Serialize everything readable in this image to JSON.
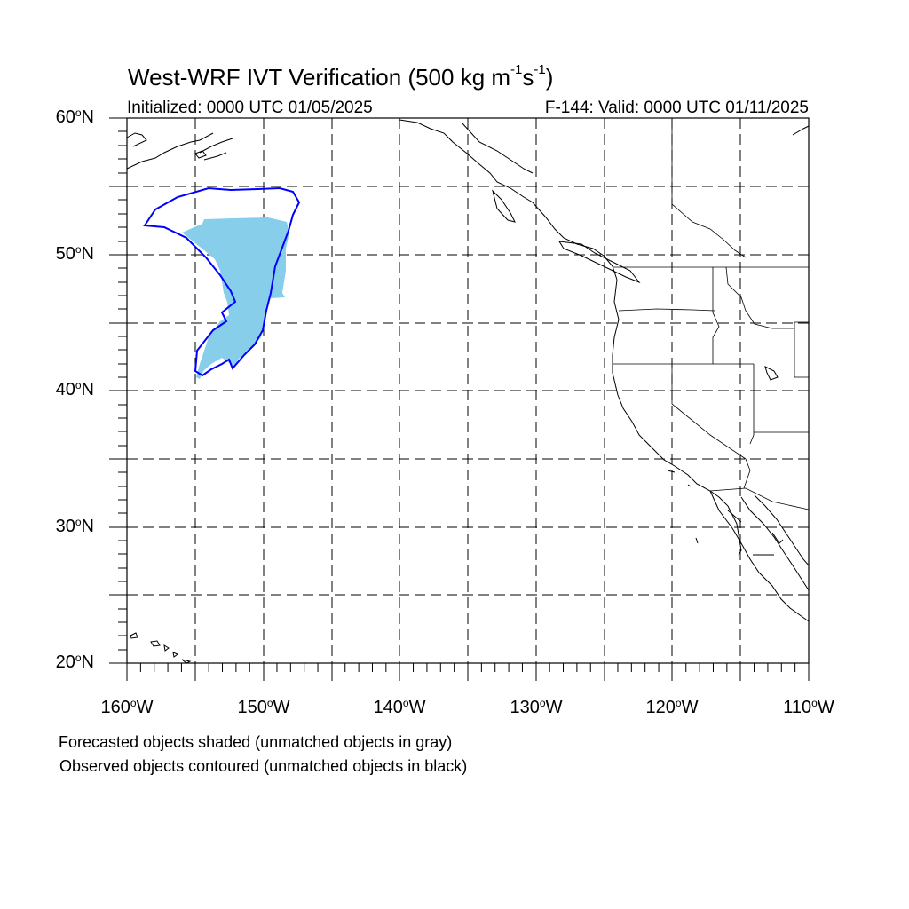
{
  "title": {
    "main": "West-WRF IVT Verification (500 kg m",
    "exp1": "-1",
    "mid": "s",
    "exp2": "-1",
    "close": ")"
  },
  "initialized": "Initialized: 0000 UTC 01/05/2025",
  "valid": "F-144: Valid: 0000 UTC 01/11/2025",
  "lat_labels": [
    "60",
    "50",
    "40",
    "30",
    "20"
  ],
  "lat_suffix": "N",
  "lon_labels": [
    "160",
    "150",
    "140",
    "130",
    "120",
    "110"
  ],
  "lon_suffix": "W",
  "degree_symbol": "o",
  "notes": [
    "Forecasted objects shaded (unmatched objects in gray)",
    "Observed objects contoured (unmatched objects in black)"
  ],
  "colors": {
    "forecast_fill": "#87ceeb",
    "observed_contour": "#0000ff",
    "grid": "#000000"
  }
}
